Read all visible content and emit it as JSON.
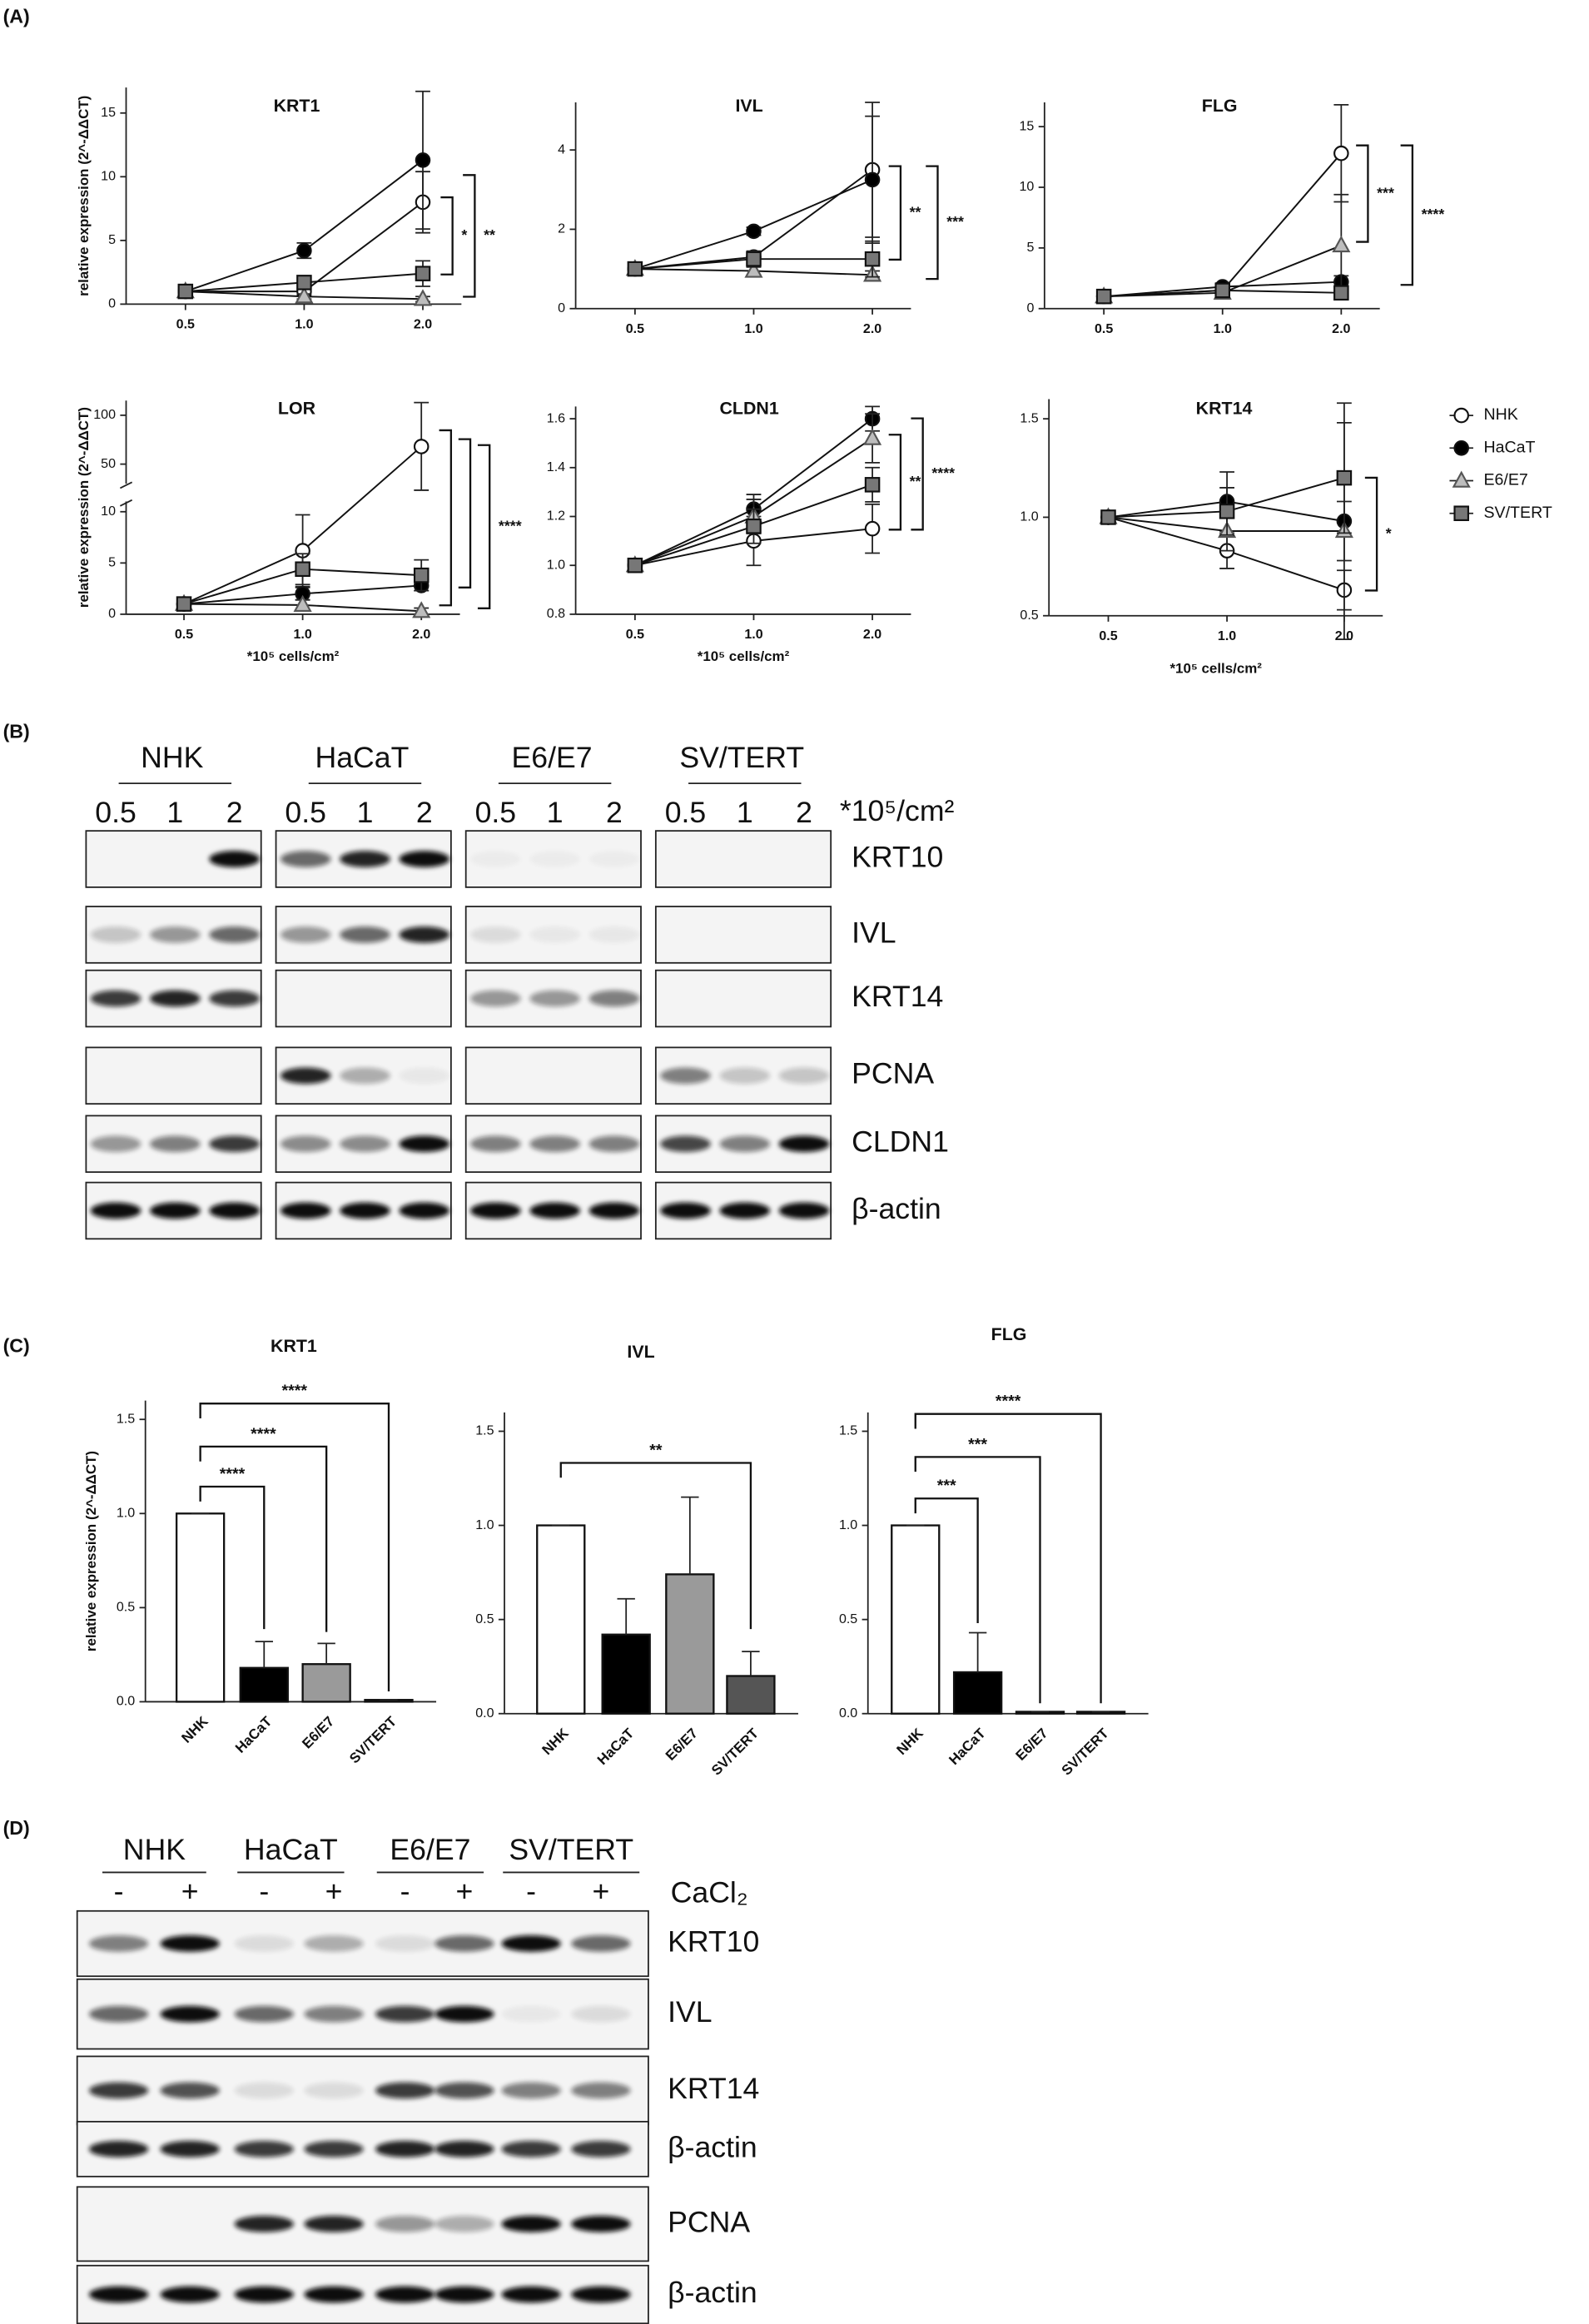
{
  "panels": {
    "a": "(A)",
    "b": "(B)",
    "c": "(C)",
    "d": "(D)"
  },
  "chart_data": [
    {
      "type": "line",
      "title": "KRT1",
      "y_label": "relative expression (2^-ΔΔCT)",
      "categories": [
        "0.5",
        "1.0",
        "2.0"
      ],
      "ylim": [
        0,
        17
      ],
      "yticks": [
        0,
        5,
        10,
        15
      ],
      "series": [
        {
          "name": "NHK",
          "color": "#ffffff",
          "marker": "circle",
          "values": [
            1,
            1,
            8
          ],
          "errors": [
            0,
            0.3,
            2.4
          ]
        },
        {
          "name": "HaCaT",
          "color": "#000000",
          "marker": "circle",
          "values": [
            1,
            4.2,
            11.3
          ],
          "errors": [
            0,
            0.6,
            5.4
          ]
        },
        {
          "name": "E6/E7",
          "color": "#bdbdbd",
          "marker": "triangle",
          "values": [
            1,
            0.6,
            0.4
          ],
          "errors": [
            0,
            0.2,
            0.2
          ]
        },
        {
          "name": "SV/TERT",
          "color": "#777777",
          "marker": "square",
          "values": [
            1,
            1.7,
            2.4
          ],
          "errors": [
            0,
            0.5,
            1
          ]
        }
      ],
      "annotations": [
        "*",
        "**"
      ]
    },
    {
      "type": "line",
      "title": "IVL",
      "categories": [
        "0.5",
        "1.0",
        "2.0"
      ],
      "ylim": [
        0,
        5.2
      ],
      "yticks": [
        0,
        2,
        4
      ],
      "series": [
        {
          "name": "NHK",
          "color": "#ffffff",
          "marker": "circle",
          "values": [
            1,
            1.3,
            3.5
          ],
          "errors": [
            0,
            0.1,
            1.7
          ]
        },
        {
          "name": "HaCaT",
          "color": "#000000",
          "marker": "circle",
          "values": [
            1,
            1.95,
            3.25
          ],
          "errors": [
            0,
            0.1,
            1.6
          ]
        },
        {
          "name": "E6/E7",
          "color": "#bdbdbd",
          "marker": "triangle",
          "values": [
            1,
            0.95,
            0.85
          ],
          "errors": [
            0,
            0.1,
            0.1
          ]
        },
        {
          "name": "SV/TERT",
          "color": "#777777",
          "marker": "square",
          "values": [
            1,
            1.25,
            1.25
          ],
          "errors": [
            0,
            0.2,
            0.45
          ]
        }
      ],
      "annotations": [
        "**",
        "***"
      ]
    },
    {
      "type": "line",
      "title": "FLG",
      "categories": [
        "0.5",
        "1.0",
        "2.0"
      ],
      "ylim": [
        0,
        17
      ],
      "yticks": [
        0,
        5,
        10,
        15
      ],
      "series": [
        {
          "name": "NHK",
          "color": "#ffffff",
          "marker": "circle",
          "values": [
            1,
            1.5,
            12.8
          ],
          "errors": [
            0,
            0.3,
            4
          ]
        },
        {
          "name": "HaCaT",
          "color": "#000000",
          "marker": "circle",
          "values": [
            1,
            1.8,
            2.2
          ],
          "errors": [
            0,
            0.3,
            0.5
          ]
        },
        {
          "name": "E6/E7",
          "color": "#bdbdbd",
          "marker": "triangle",
          "values": [
            1,
            1.3,
            5.2
          ],
          "errors": [
            0,
            0.3,
            4.2
          ]
        },
        {
          "name": "SV/TERT",
          "color": "#777777",
          "marker": "square",
          "values": [
            1,
            1.5,
            1.3
          ],
          "errors": [
            0,
            0.3,
            0.5
          ]
        }
      ],
      "annotations": [
        "***",
        "****"
      ]
    },
    {
      "type": "line",
      "title": "LOR",
      "y_label": "relative expression (2^-ΔΔCT)",
      "x_label": "*10⁵ cells/cm²",
      "categories": [
        "0.5",
        "1.0",
        "2.0"
      ],
      "ylim": [
        0,
        115
      ],
      "axis_break": [
        11,
        30
      ],
      "yticks": [
        0,
        5,
        10,
        50,
        100
      ],
      "series": [
        {
          "name": "NHK",
          "color": "#ffffff",
          "marker": "circle",
          "values": [
            1,
            6.2,
            68
          ],
          "errors": [
            0,
            3.5,
            45
          ]
        },
        {
          "name": "HaCaT",
          "color": "#000000",
          "marker": "circle",
          "values": [
            1,
            2,
            2.8
          ],
          "errors": [
            0,
            0.6,
            0.5
          ]
        },
        {
          "name": "E6/E7",
          "color": "#bdbdbd",
          "marker": "triangle",
          "values": [
            1,
            0.9,
            0.3
          ],
          "errors": [
            0,
            0.5,
            0.3
          ]
        },
        {
          "name": "SV/TERT",
          "color": "#777777",
          "marker": "square",
          "values": [
            1,
            4.4,
            3.8
          ],
          "errors": [
            0,
            1.5,
            1.5
          ]
        }
      ],
      "annotations": [
        "****"
      ]
    },
    {
      "type": "line",
      "title": "CLDN1",
      "x_label": "*10⁵ cells/cm²",
      "categories": [
        "0.5",
        "1.0",
        "2.0"
      ],
      "ylim": [
        0.8,
        1.65
      ],
      "yticks": [
        0.8,
        {
          "value": 1,
          "label": "1.0"
        },
        1.2,
        1.4,
        1.6
      ],
      "series": [
        {
          "name": "NHK",
          "color": "#ffffff",
          "marker": "circle",
          "values": [
            1,
            1.1,
            1.15
          ],
          "errors": [
            0,
            0.1,
            0.1
          ]
        },
        {
          "name": "HaCaT",
          "color": "#000000",
          "marker": "circle",
          "values": [
            1,
            1.23,
            1.6
          ],
          "errors": [
            0,
            0.06,
            0.05
          ]
        },
        {
          "name": "E6/E7",
          "color": "#bdbdbd",
          "marker": "triangle",
          "values": [
            1,
            1.2,
            1.52
          ],
          "errors": [
            0,
            0.07,
            0.1
          ]
        },
        {
          "name": "SV/TERT",
          "color": "#777777",
          "marker": "square",
          "values": [
            1,
            1.16,
            1.33
          ],
          "errors": [
            0,
            0.07,
            0.07
          ]
        }
      ],
      "annotations": [
        "**",
        "****"
      ]
    },
    {
      "type": "line",
      "title": "KRT14",
      "x_label": "*10⁵ cells/cm²",
      "categories": [
        "0.5",
        "1.0",
        "2.0"
      ],
      "ylim": [
        0.5,
        1.6
      ],
      "yticks": [
        0.5,
        {
          "value": 1,
          "label": "1.0"
        },
        1.5
      ],
      "series": [
        {
          "name": "NHK",
          "color": "#ffffff",
          "marker": "circle",
          "values": [
            1,
            0.83,
            0.63
          ],
          "errors": [
            0,
            0.09,
            0.1
          ]
        },
        {
          "name": "HaCaT",
          "color": "#000000",
          "marker": "circle",
          "values": [
            1,
            1.08,
            0.98
          ],
          "errors": [
            0,
            0.15,
            0.6
          ]
        },
        {
          "name": "E6/E7",
          "color": "#bdbdbd",
          "marker": "triangle",
          "values": [
            1,
            0.93,
            0.93
          ],
          "errors": [
            0,
            0.1,
            0.15
          ]
        },
        {
          "name": "SV/TERT",
          "color": "#777777",
          "marker": "square",
          "values": [
            1,
            1.03,
            1.2
          ],
          "errors": [
            0,
            0.12,
            0.28
          ]
        }
      ],
      "annotations": [
        "*"
      ]
    },
    {
      "type": "bar",
      "title": "KRT1",
      "y_label": "relative expression (2^-ΔΔCT)",
      "categories": [
        "NHK",
        "HaCaT",
        "E6/E7",
        "SV/TERT"
      ],
      "values": [
        1,
        0.18,
        0.2,
        0.01
      ],
      "errors": [
        0,
        0.14,
        0.11,
        0
      ],
      "colors": [
        "#ffffff",
        "#000000",
        "#9a9a9a",
        "#555555"
      ],
      "ylim": [
        0,
        1.6
      ],
      "yticks": [
        {
          "value": 0,
          "label": "0.0"
        },
        0.5,
        {
          "value": 1,
          "label": "1.0"
        },
        1.5
      ],
      "annotations": [
        "****",
        "****",
        "****"
      ]
    },
    {
      "type": "bar",
      "title": "IVL",
      "categories": [
        "NHK",
        "HaCaT",
        "E6/E7",
        "SV/TERT"
      ],
      "values": [
        1,
        0.42,
        0.74,
        0.2
      ],
      "errors": [
        0,
        0.19,
        0.41,
        0.13
      ],
      "colors": [
        "#ffffff",
        "#000000",
        "#9a9a9a",
        "#555555"
      ],
      "ylim": [
        0,
        1.6
      ],
      "yticks": [
        {
          "value": 0,
          "label": "0.0"
        },
        0.5,
        {
          "value": 1,
          "label": "1.0"
        },
        1.5
      ],
      "annotations": [
        "**"
      ]
    },
    {
      "type": "bar",
      "title": "FLG",
      "categories": [
        "NHK",
        "HaCaT",
        "E6/E7",
        "SV/TERT"
      ],
      "values": [
        1,
        0.22,
        0.01,
        0.01
      ],
      "errors": [
        0,
        0.21,
        0,
        0
      ],
      "colors": [
        "#ffffff",
        "#000000",
        "#9a9a9a",
        "#555555"
      ],
      "ylim": [
        0,
        1.6
      ],
      "yticks": [
        {
          "value": 0,
          "label": "0.0"
        },
        0.5,
        {
          "value": 1,
          "label": "1.0"
        },
        1.5
      ],
      "annotations": [
        "***",
        "***",
        "****"
      ]
    }
  ],
  "blot_b": {
    "groups": [
      "NHK",
      "HaCaT",
      "E6/E7",
      "SV/TERT"
    ],
    "lanes": [
      "0.5",
      "1",
      "2"
    ],
    "unit": "*10⁵/cm²",
    "proteins": [
      "KRT10",
      "IVL",
      "KRT14",
      "PCNA",
      "CLDN1",
      "β-actin"
    ]
  },
  "blot_d": {
    "groups": [
      "NHK",
      "HaCaT",
      "E6/E7",
      "SV/TERT"
    ],
    "lanes": [
      "-",
      "+"
    ],
    "treatment": "CaCl₂",
    "proteins": [
      "KRT10",
      "IVL",
      "KRT14",
      "β-actin",
      "PCNA",
      "β-actin"
    ]
  }
}
